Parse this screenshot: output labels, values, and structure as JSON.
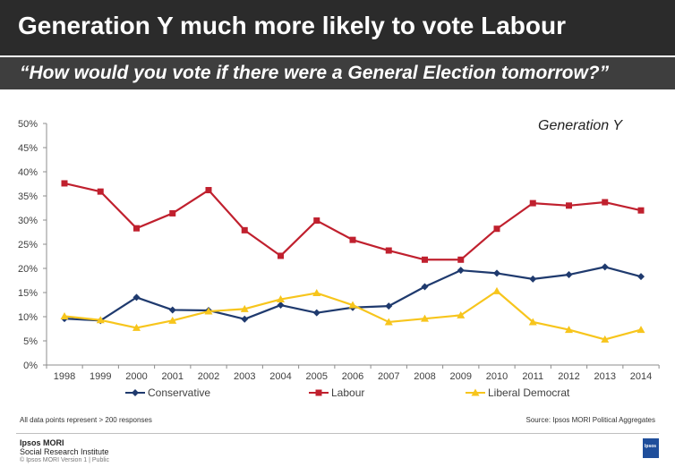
{
  "header": {
    "title": "Generation Y much more likely to vote Labour",
    "subtitle": "“How would you vote if there were a General Election tomorrow?”"
  },
  "footer": {
    "note_left": "All data points represent > 200 responses",
    "note_right": "Source: Ipsos MORI Political Aggregates",
    "brand_line1": "Ipsos MORI",
    "brand_line2": "Social Research Institute",
    "brand_line3": "© Ipsos MORI    Version 1 | Public",
    "logo_text": "Ipsos"
  },
  "chart_data": {
    "type": "line",
    "annotation": "Generation Y",
    "x": [
      "1998",
      "1999",
      "2000",
      "2001",
      "2002",
      "2003",
      "2004",
      "2005",
      "2006",
      "2007",
      "2008",
      "2009",
      "2010",
      "2011",
      "2012",
      "2013",
      "2014"
    ],
    "ylim": [
      0,
      50
    ],
    "yticks": [
      "0%",
      "5%",
      "10%",
      "15%",
      "20%",
      "25%",
      "30%",
      "35%",
      "40%",
      "45%",
      "50%"
    ],
    "grid": false,
    "legend_position": "bottom",
    "series": [
      {
        "name": "Conservative",
        "color": "#1f3a6e",
        "marker": "diamond",
        "values": [
          9.6,
          9.2,
          14.0,
          11.4,
          11.3,
          9.5,
          12.4,
          10.8,
          11.9,
          12.2,
          16.2,
          19.6,
          19.0,
          17.8,
          18.7,
          20.3,
          18.3
        ]
      },
      {
        "name": "Labour",
        "color": "#c0202e",
        "marker": "square",
        "values": [
          37.6,
          35.9,
          28.3,
          31.4,
          36.2,
          27.9,
          22.6,
          29.9,
          25.9,
          23.7,
          21.8,
          21.8,
          28.2,
          33.5,
          33.0,
          33.7,
          32.0
        ]
      },
      {
        "name": "Liberal  Democrat",
        "color": "#f7c51c",
        "marker": "triangle",
        "values": [
          10.1,
          9.3,
          7.7,
          9.2,
          11.1,
          11.6,
          13.6,
          14.9,
          12.4,
          8.9,
          9.6,
          10.3,
          15.3,
          8.9,
          7.3,
          5.3,
          7.3
        ]
      }
    ]
  }
}
